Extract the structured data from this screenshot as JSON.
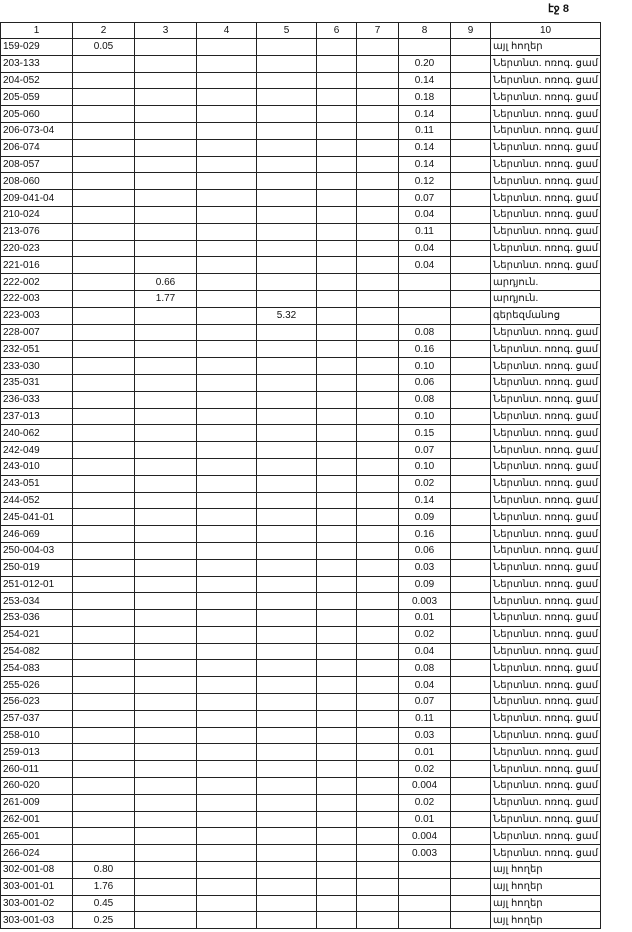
{
  "page_label": "էջ 8",
  "table": {
    "header": [
      "1",
      "2",
      "3",
      "4",
      "5",
      "6",
      "7",
      "8",
      "9",
      "10"
    ],
    "rows": [
      [
        "159-029",
        "0.05",
        null,
        null,
        null,
        null,
        null,
        null,
        null,
        "այլ հողեր"
      ],
      [
        "203-133",
        null,
        null,
        null,
        null,
        null,
        null,
        "0.20",
        null,
        "Ներտնտ. ոռոգ. ցամ"
      ],
      [
        "204-052",
        null,
        null,
        null,
        null,
        null,
        null,
        "0.14",
        null,
        "Ներտնտ. ոռոգ. ցամ"
      ],
      [
        "205-059",
        null,
        null,
        null,
        null,
        null,
        null,
        "0.18",
        null,
        "Ներտնտ. ոռոգ. ցամ"
      ],
      [
        "205-060",
        null,
        null,
        null,
        null,
        null,
        null,
        "0.14",
        null,
        "Ներտնտ. ոռոգ. ցամ"
      ],
      [
        "206-073-04",
        null,
        null,
        null,
        null,
        null,
        null,
        "0.11",
        null,
        "Ներտնտ. ոռոգ. ցամ"
      ],
      [
        "206-074",
        null,
        null,
        null,
        null,
        null,
        null,
        "0.14",
        null,
        "Ներտնտ. ոռոգ. ցամ"
      ],
      [
        "208-057",
        null,
        null,
        null,
        null,
        null,
        null,
        "0.14",
        null,
        "Ներտնտ. ոռոգ. ցամ"
      ],
      [
        "208-060",
        null,
        null,
        null,
        null,
        null,
        null,
        "0.12",
        null,
        "Ներտնտ. ոռոգ. ցամ"
      ],
      [
        "209-041-04",
        null,
        null,
        null,
        null,
        null,
        null,
        "0.07",
        null,
        "Ներտնտ. ոռոգ. ցամ"
      ],
      [
        "210-024",
        null,
        null,
        null,
        null,
        null,
        null,
        "0.04",
        null,
        "Ներտնտ. ոռոգ. ցամ"
      ],
      [
        "213-076",
        null,
        null,
        null,
        null,
        null,
        null,
        "0.11",
        null,
        "Ներտնտ. ոռոգ. ցամ"
      ],
      [
        "220-023",
        null,
        null,
        null,
        null,
        null,
        null,
        "0.04",
        null,
        "Ներտնտ. ոռոգ. ցամ"
      ],
      [
        "221-016",
        null,
        null,
        null,
        null,
        null,
        null,
        "0.04",
        null,
        "Ներտնտ. ոռոգ. ցամ"
      ],
      [
        "222-002",
        null,
        "0.66",
        null,
        null,
        null,
        null,
        null,
        null,
        "արդյուն."
      ],
      [
        "222-003",
        null,
        "1.77",
        null,
        null,
        null,
        null,
        null,
        null,
        "արդյուն."
      ],
      [
        "223-003",
        null,
        null,
        null,
        "5.32",
        null,
        null,
        null,
        null,
        "գերեզմանոց"
      ],
      [
        "228-007",
        null,
        null,
        null,
        null,
        null,
        null,
        "0.08",
        null,
        "Ներտնտ. ոռոգ. ցամ"
      ],
      [
        "232-051",
        null,
        null,
        null,
        null,
        null,
        null,
        "0.16",
        null,
        "Ներտնտ. ոռոգ. ցամ"
      ],
      [
        "233-030",
        null,
        null,
        null,
        null,
        null,
        null,
        "0.10",
        null,
        "Ներտնտ. ոռոգ. ցամ"
      ],
      [
        "235-031",
        null,
        null,
        null,
        null,
        null,
        null,
        "0.06",
        null,
        "Ներտնտ. ոռոգ. ցամ"
      ],
      [
        "236-033",
        null,
        null,
        null,
        null,
        null,
        null,
        "0.08",
        null,
        "Ներտնտ. ոռոգ. ցամ"
      ],
      [
        "237-013",
        null,
        null,
        null,
        null,
        null,
        null,
        "0.10",
        null,
        "Ներտնտ. ոռոգ. ցամ"
      ],
      [
        "240-062",
        null,
        null,
        null,
        null,
        null,
        null,
        "0.15",
        null,
        "Ներտնտ. ոռոգ. ցամ"
      ],
      [
        "242-049",
        null,
        null,
        null,
        null,
        null,
        null,
        "0.07",
        null,
        "Ներտնտ. ոռոգ. ցամ"
      ],
      [
        "243-010",
        null,
        null,
        null,
        null,
        null,
        null,
        "0.10",
        null,
        "Ներտնտ. ոռոգ. ցամ"
      ],
      [
        "243-051",
        null,
        null,
        null,
        null,
        null,
        null,
        "0.02",
        null,
        "Ներտնտ. ոռոգ. ցամ"
      ],
      [
        "244-052",
        null,
        null,
        null,
        null,
        null,
        null,
        "0.14",
        null,
        "Ներտնտ. ոռոգ. ցամ"
      ],
      [
        "245-041-01",
        null,
        null,
        null,
        null,
        null,
        null,
        "0.09",
        null,
        "Ներտնտ. ոռոգ. ցամ"
      ],
      [
        "246-069",
        null,
        null,
        null,
        null,
        null,
        null,
        "0.16",
        null,
        "Ներտնտ. ոռոգ. ցամ"
      ],
      [
        "250-004-03",
        null,
        null,
        null,
        null,
        null,
        null,
        "0.06",
        null,
        "Ներտնտ. ոռոգ. ցամ"
      ],
      [
        "250-019",
        null,
        null,
        null,
        null,
        null,
        null,
        "0.03",
        null,
        "Ներտնտ. ոռոգ. ցամ"
      ],
      [
        "251-012-01",
        null,
        null,
        null,
        null,
        null,
        null,
        "0.09",
        null,
        "Ներտնտ. ոռոգ. ցամ"
      ],
      [
        "253-034",
        null,
        null,
        null,
        null,
        null,
        null,
        "0.003",
        null,
        "Ներտնտ. ոռոգ. ցամ"
      ],
      [
        "253-036",
        null,
        null,
        null,
        null,
        null,
        null,
        "0.01",
        null,
        "Ներտնտ. ոռոգ. ցամ"
      ],
      [
        "254-021",
        null,
        null,
        null,
        null,
        null,
        null,
        "0.02",
        null,
        "Ներտնտ. ոռոգ. ցամ"
      ],
      [
        "254-082",
        null,
        null,
        null,
        null,
        null,
        null,
        "0.04",
        null,
        "Ներտնտ. ոռոգ. ցամ"
      ],
      [
        "254-083",
        null,
        null,
        null,
        null,
        null,
        null,
        "0.08",
        null,
        "Ներտնտ. ոռոգ. ցամ"
      ],
      [
        "255-026",
        null,
        null,
        null,
        null,
        null,
        null,
        "0.04",
        null,
        "Ներտնտ. ոռոգ. ցամ"
      ],
      [
        "256-023",
        null,
        null,
        null,
        null,
        null,
        null,
        "0.07",
        null,
        "Ներտնտ. ոռոգ. ցամ"
      ],
      [
        "257-037",
        null,
        null,
        null,
        null,
        null,
        null,
        "0.11",
        null,
        "Ներտնտ. ոռոգ. ցամ"
      ],
      [
        "258-010",
        null,
        null,
        null,
        null,
        null,
        null,
        "0.03",
        null,
        "Ներտնտ. ոռոգ. ցամ"
      ],
      [
        "259-013",
        null,
        null,
        null,
        null,
        null,
        null,
        "0.01",
        null,
        "Ներտնտ. ոռոգ. ցամ"
      ],
      [
        "260-011",
        null,
        null,
        null,
        null,
        null,
        null,
        "0.02",
        null,
        "Ներտնտ. ոռոգ. ցամ"
      ],
      [
        "260-020",
        null,
        null,
        null,
        null,
        null,
        null,
        "0.004",
        null,
        "Ներտնտ. ոռոգ. ցամ"
      ],
      [
        "261-009",
        null,
        null,
        null,
        null,
        null,
        null,
        "0.02",
        null,
        "Ներտնտ. ոռոգ. ցամ"
      ],
      [
        "262-001",
        null,
        null,
        null,
        null,
        null,
        null,
        "0.01",
        null,
        "Ներտնտ. ոռոգ. ցամ"
      ],
      [
        "265-001",
        null,
        null,
        null,
        null,
        null,
        null,
        "0.004",
        null,
        "Ներտնտ. ոռոգ. ցամ"
      ],
      [
        "266-024",
        null,
        null,
        null,
        null,
        null,
        null,
        "0.003",
        null,
        "Ներտնտ. ոռոգ. ցամ"
      ],
      [
        "302-001-08",
        "0.80",
        null,
        null,
        null,
        null,
        null,
        null,
        null,
        "այլ հողեր"
      ],
      [
        "303-001-01",
        "1.76",
        null,
        null,
        null,
        null,
        null,
        null,
        null,
        "այլ հողեր"
      ],
      [
        "303-001-02",
        "0.45",
        null,
        null,
        null,
        null,
        null,
        null,
        null,
        "այլ հողեր"
      ],
      [
        "303-001-03",
        "0.25",
        null,
        null,
        null,
        null,
        null,
        null,
        null,
        "այլ հողեր"
      ]
    ]
  }
}
